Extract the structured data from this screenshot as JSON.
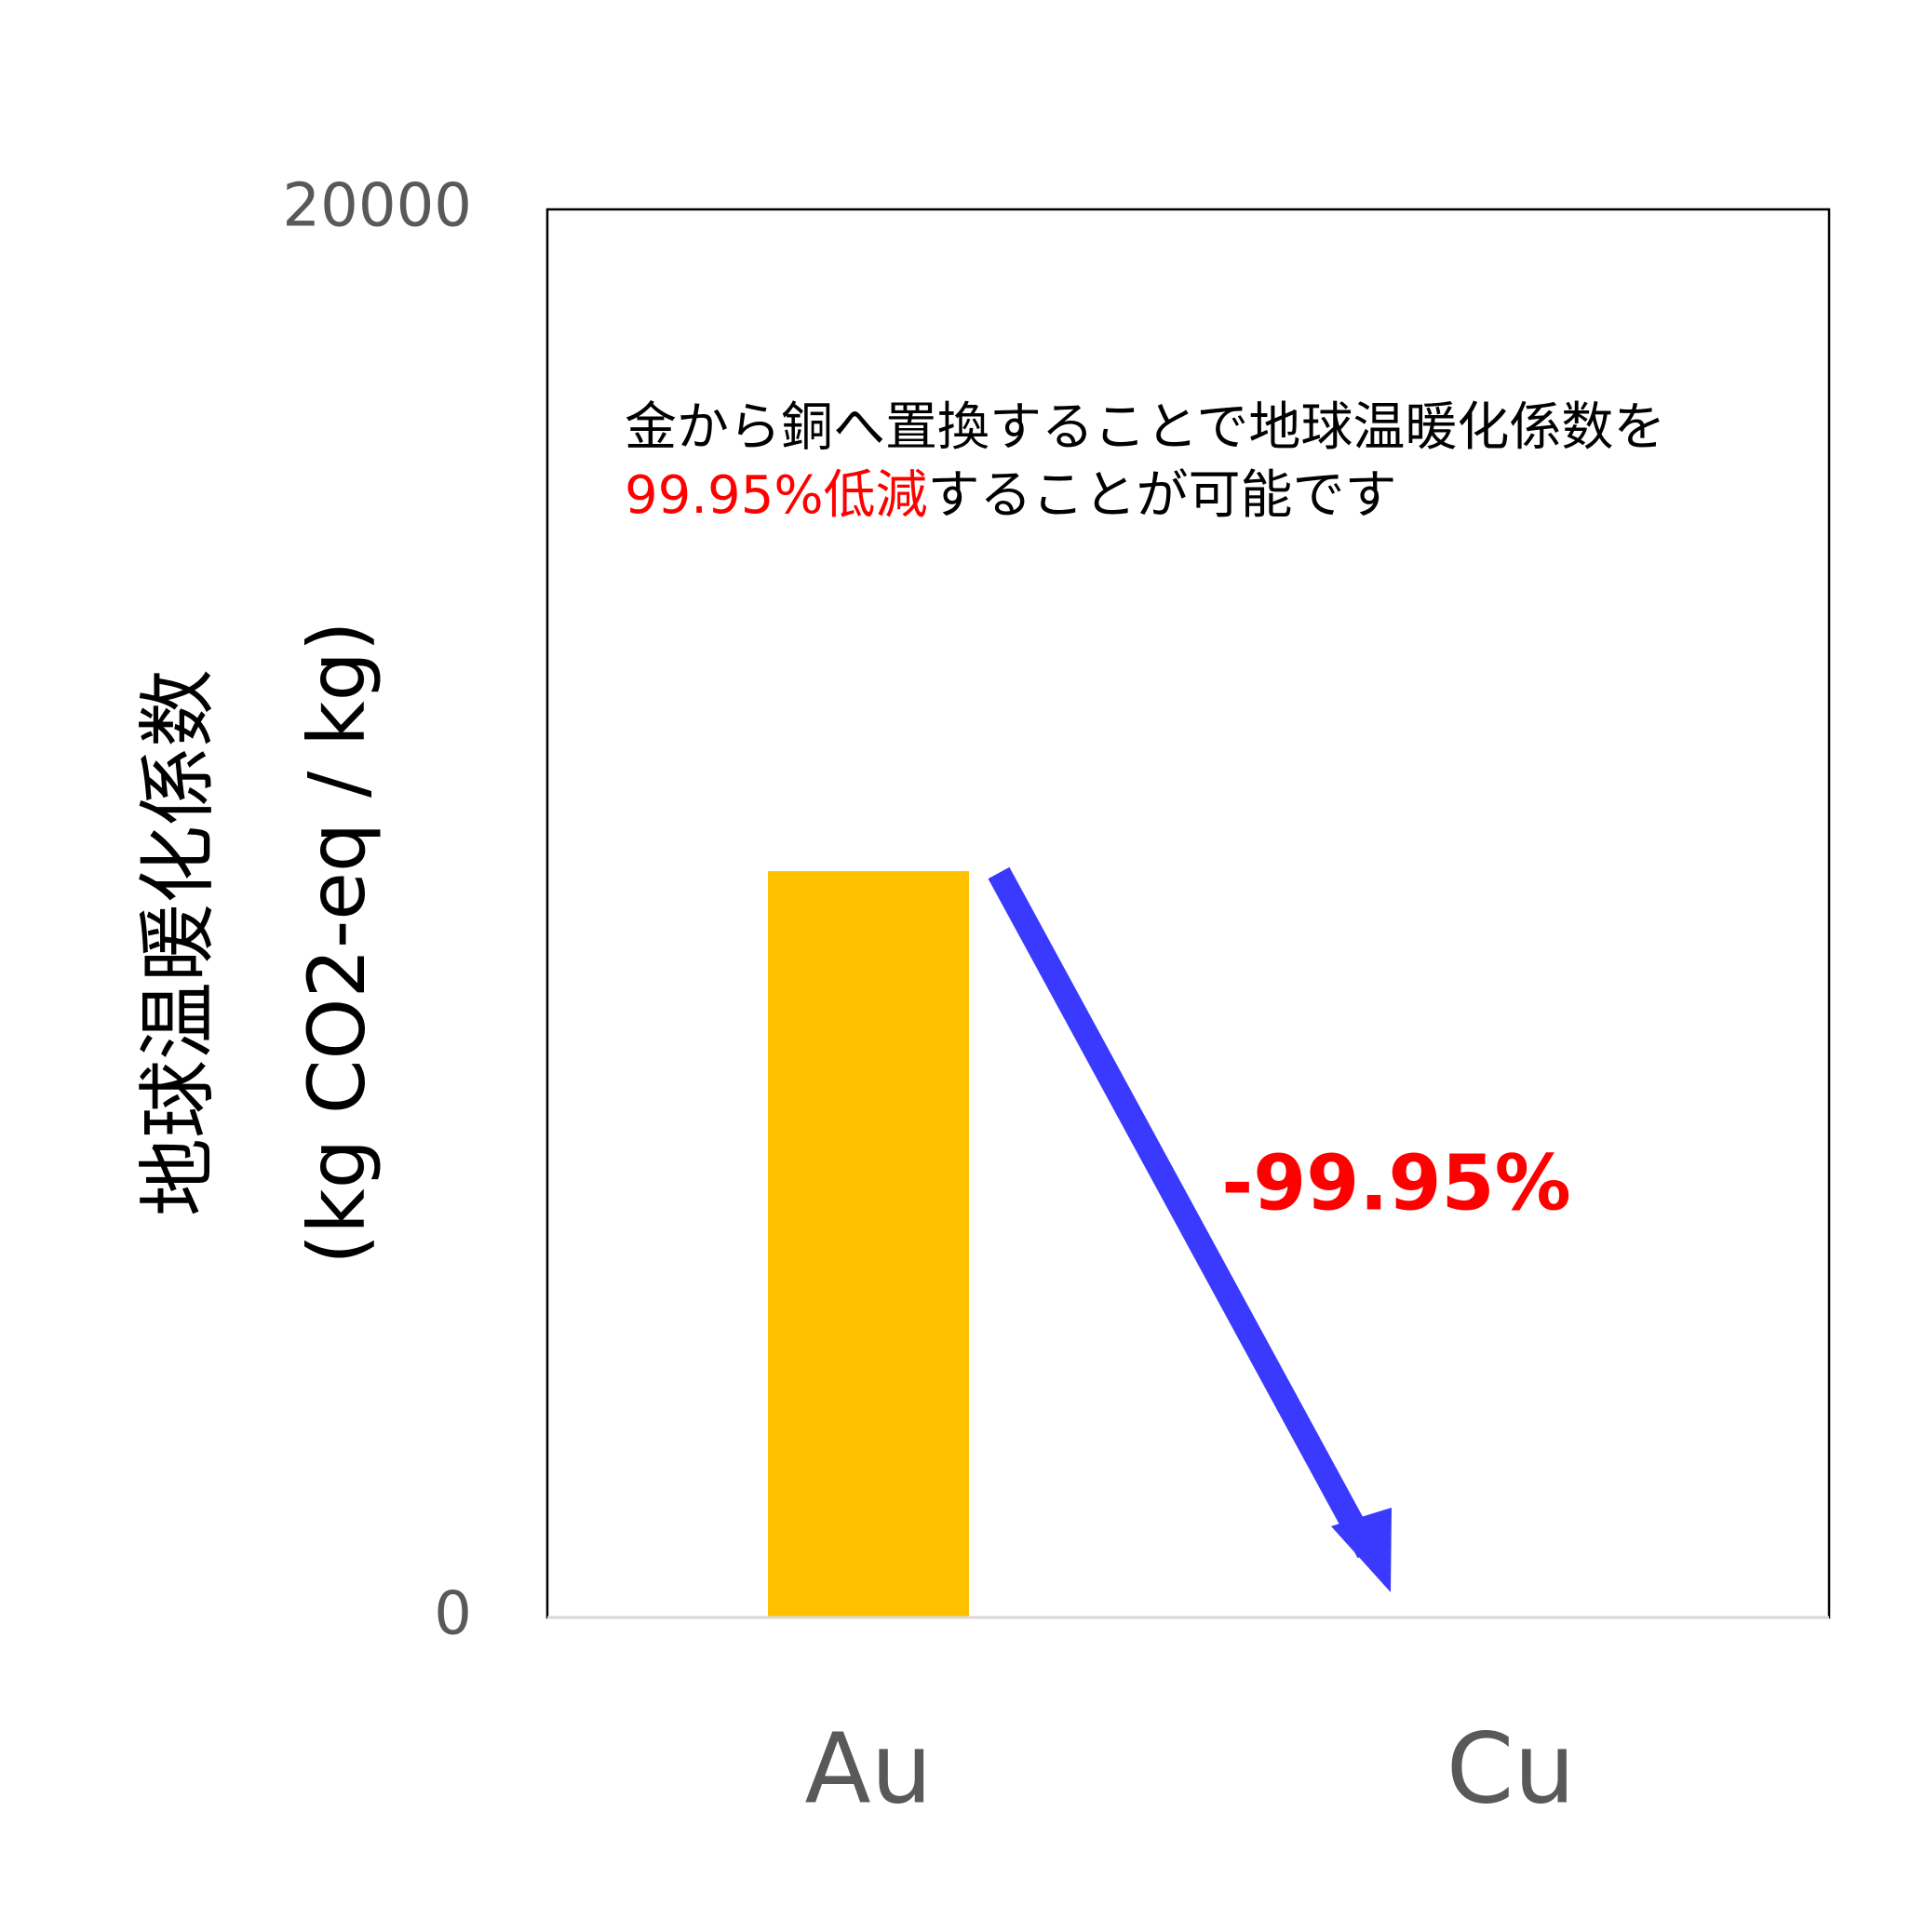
{
  "chart_data": {
    "type": "bar",
    "y_label": [
      "地球温暖化係数",
      "(kg CO2-eq / kg)"
    ],
    "categories": [
      "Au",
      "Cu"
    ],
    "values": [
      10600,
      5
    ],
    "colors": [
      "#ffc000",
      "#c55a11"
    ],
    "ylim": [
      0,
      20000
    ],
    "yticks": [
      0,
      20000
    ],
    "annotation": {
      "line1": "金から銅へ置換することで地球温暖化係数を",
      "highlight": "99.95%低減",
      "line2": "することが可能です"
    },
    "arrow_label": "-99.95%"
  }
}
